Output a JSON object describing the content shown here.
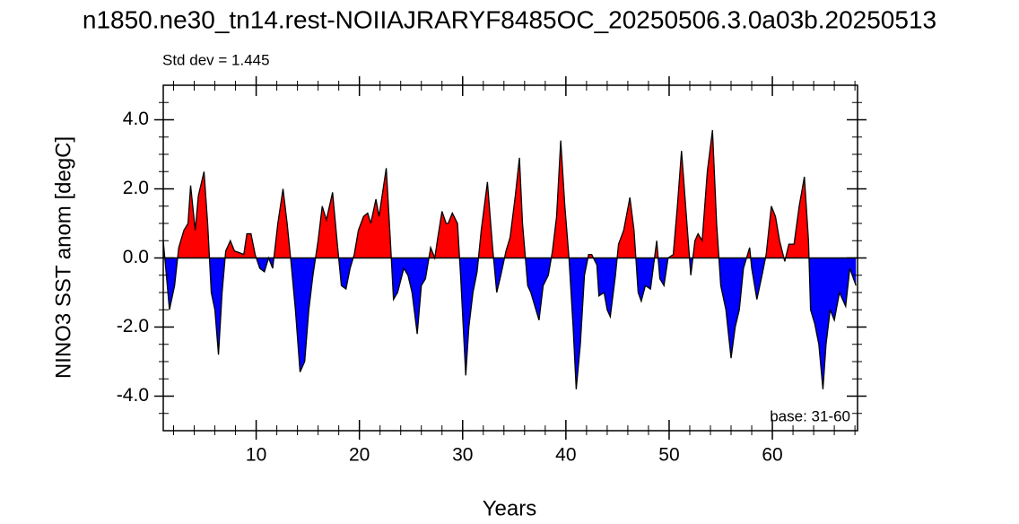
{
  "chart_data": {
    "type": "area",
    "title": "n1850.ne30_tn14.rest-NOIIAJRARYF8485OC_20250506.3.0a03b.20250513",
    "subtitle": "Std dev = 1.445",
    "annotation": "base: 31-60",
    "x_label": "Years",
    "y_label": "NINO3 SST anom [degC]",
    "above_color": "#ff0000",
    "below_color": "#0000ff",
    "xlim": [
      1,
      68.25
    ],
    "ylim": [
      -5,
      5
    ],
    "xticks": [
      10,
      20,
      30,
      40,
      50,
      60
    ],
    "xminorticks": [
      2,
      4,
      6,
      8,
      12,
      14,
      16,
      18,
      22,
      24,
      26,
      28,
      32,
      34,
      36,
      38,
      42,
      44,
      46,
      48,
      52,
      54,
      56,
      58,
      62,
      64,
      66,
      68
    ],
    "yticks": [
      {
        "value": -4,
        "label": "-4.0"
      },
      {
        "value": -2,
        "label": "-2.0"
      },
      {
        "value": 0,
        "label": "0.0"
      },
      {
        "value": 2,
        "label": "2.0"
      },
      {
        "value": 4,
        "label": "4.0"
      }
    ],
    "yminorticks": [
      -4.5,
      -3.5,
      -3,
      -2.5,
      -1.5,
      -1,
      -0.5,
      0.5,
      1,
      1.5,
      2.5,
      3,
      3.5,
      4.5
    ],
    "x": [
      1,
      1.6,
      2.1,
      2.5,
      3,
      3.4,
      3.65,
      4.1,
      4.4,
      4.95,
      5.3,
      5.65,
      6,
      6.35,
      6.7,
      7.05,
      7.5,
      7.9,
      8.4,
      8.8,
      9.1,
      9.5,
      9.9,
      10.35,
      10.8,
      11.2,
      11.6,
      12.1,
      12.6,
      13.0,
      13.4,
      13.8,
      14.25,
      14.7,
      15.1,
      15.5,
      16.0,
      16.4,
      16.8,
      17.4,
      17.8,
      18.25,
      18.7,
      19.1,
      19.5,
      19.9,
      20.4,
      20.8,
      21.1,
      21.6,
      21.9,
      22.6,
      23.0,
      23.3,
      23.7,
      24.3,
      24.7,
      25.1,
      25.6,
      26.0,
      26.4,
      26.9,
      27.3,
      27.6,
      28.0,
      28.4,
      28.6,
      29.0,
      29.5,
      29.8,
      30.3,
      30.6,
      31.0,
      31.4,
      31.8,
      32.4,
      32.9,
      33.3,
      33.7,
      34.2,
      34.6,
      35.1,
      35.5,
      35.8,
      36.3,
      36.6,
      37.0,
      37.4,
      37.8,
      38.3,
      38.7,
      39.1,
      39.5,
      39.9,
      40.3,
      40.7,
      41.0,
      41.4,
      41.8,
      42.2,
      42.5,
      43.0,
      43.2,
      43.7,
      44.0,
      44.3,
      44.8,
      45.1,
      45.6,
      46.2,
      46.6,
      47.0,
      47.3,
      47.7,
      48.2,
      48.8,
      49.1,
      49.5,
      49.9,
      50.4,
      50.8,
      51.2,
      51.6,
      52.1,
      52.5,
      52.8,
      53.2,
      53.7,
      54.2,
      54.6,
      55.0,
      55.5,
      56.0,
      56.4,
      56.8,
      57.2,
      57.8,
      58.0,
      58.5,
      59.0,
      59.4,
      59.9,
      60.3,
      60.7,
      61.2,
      61.6,
      62.1,
      62.6,
      63.1,
      63.5,
      63.7,
      64.1,
      64.5,
      64.9,
      65.2,
      65.6,
      66.0,
      66.5,
      67.1,
      67.5,
      68.1
    ],
    "values": [
      0.5,
      -1.5,
      -0.8,
      0.3,
      0.8,
      1.0,
      2.1,
      0.8,
      1.8,
      2.5,
      1.0,
      -1.0,
      -1.5,
      -2.8,
      -1.0,
      0.2,
      0.5,
      0.2,
      0.15,
      0.1,
      0.7,
      0.7,
      0.1,
      -0.3,
      -0.4,
      0,
      -0.3,
      1.0,
      2.0,
      1.0,
      -0.2,
      -1.5,
      -3.3,
      -3.0,
      -1.5,
      -0.5,
      0.5,
      1.5,
      1.1,
      1.9,
      0.6,
      -0.8,
      -0.9,
      -0.3,
      0.1,
      0.8,
      1.2,
      1.3,
      1.0,
      1.7,
      1.2,
      2.6,
      0.5,
      -1.2,
      -1.0,
      -0.3,
      -0.5,
      -1.0,
      -2.2,
      -0.8,
      -0.6,
      0.3,
      0.0,
      0.6,
      1.35,
      1.0,
      1.0,
      1.3,
      1.0,
      -0.5,
      -3.4,
      -2.0,
      -1.0,
      -0.4,
      0.8,
      2.2,
      0.3,
      -1.0,
      -0.5,
      0.2,
      0.6,
      1.8,
      2.9,
      1.0,
      -0.8,
      -1.0,
      -1.4,
      -1.8,
      -0.8,
      -0.5,
      0.2,
      1.2,
      3.4,
      1.5,
      0.0,
      -2.0,
      -3.8,
      -2.5,
      -0.5,
      0.1,
      0.1,
      -0.2,
      -1.1,
      -1.0,
      -1.5,
      -1.7,
      -0.5,
      0.4,
      0.8,
      1.75,
      0.8,
      -1.0,
      -1.25,
      -0.8,
      -0.9,
      0.5,
      -0.6,
      -0.8,
      0.0,
      0.1,
      1.5,
      3.1,
      1.5,
      -0.5,
      0.5,
      0.7,
      0.5,
      2.5,
      3.7,
      1.0,
      -0.8,
      -1.5,
      -2.9,
      -2.0,
      -1.5,
      -0.3,
      0.3,
      -0.3,
      -1.2,
      -0.5,
      0.1,
      1.5,
      1.2,
      0.5,
      -0.1,
      0.4,
      0.4,
      1.5,
      2.35,
      0.5,
      -1.5,
      -1.9,
      -2.5,
      -3.8,
      -2.5,
      -1.5,
      -1.8,
      -1.0,
      -1.4,
      -0.3,
      -0.8
    ]
  }
}
